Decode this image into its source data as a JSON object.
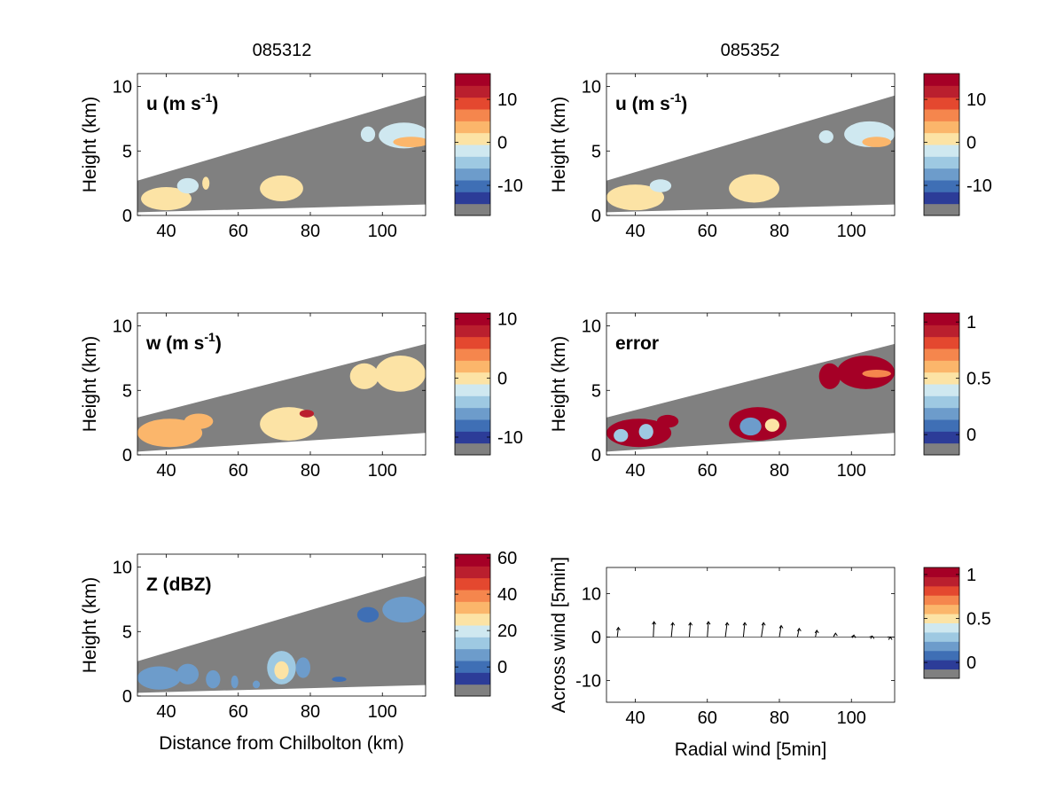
{
  "figure": {
    "column_titles": [
      "085312",
      "085352"
    ]
  },
  "colorbar": {
    "levels": [
      "#808080",
      "#2c3c98",
      "#3f6fb5",
      "#6d9ccb",
      "#9ec9e2",
      "#cfe8f0",
      "#fce3a5",
      "#fbb66b",
      "#f5864d",
      "#e4482f",
      "#ba1f2e",
      "#a50026"
    ]
  },
  "chart_data": [
    {
      "id": "u_085312",
      "type": "heatmap",
      "column": "085312",
      "panel_label": "u (m s",
      "panel_label_sup": "-1",
      "ylabel": "Height (km)",
      "xlabel": "",
      "xlim": [
        32,
        112
      ],
      "ylim": [
        0,
        11
      ],
      "xticks": [
        40,
        60,
        80,
        100
      ],
      "yticks": [
        0,
        5,
        10
      ],
      "beam": {
        "x": [
          32,
          112
        ],
        "bottom": [
          0.25,
          0.85
        ],
        "top": [
          2.7,
          9.3
        ]
      },
      "colorbar": {
        "ticks": [
          "10",
          "0",
          "-10"
        ],
        "tick_values": [
          10,
          0,
          -10
        ],
        "range": [
          -17,
          16
        ]
      },
      "features": [
        {
          "x": 40,
          "y": 1.3,
          "rx": 7,
          "ry": 0.9,
          "value": -2
        },
        {
          "x": 46,
          "y": 2.3,
          "rx": 3,
          "ry": 0.6,
          "value": -3
        },
        {
          "x": 51,
          "y": 2.5,
          "rx": 1,
          "ry": 0.5,
          "value": -2
        },
        {
          "x": 72,
          "y": 2.1,
          "rx": 6,
          "ry": 1.0,
          "value": -2
        },
        {
          "x": 96,
          "y": 6.3,
          "rx": 2,
          "ry": 0.6,
          "value": -5
        },
        {
          "x": 106,
          "y": 6.2,
          "rx": 7,
          "ry": 1.0,
          "value": -3
        },
        {
          "x": 108,
          "y": 5.7,
          "rx": 5,
          "ry": 0.4,
          "value": 2
        }
      ]
    },
    {
      "id": "u_085352",
      "type": "heatmap",
      "column": "085352",
      "panel_label": "u (m s",
      "panel_label_sup": "-1",
      "ylabel": "Height (km)",
      "xlabel": "",
      "xlim": [
        32,
        112
      ],
      "ylim": [
        0,
        11
      ],
      "xticks": [
        40,
        60,
        80,
        100
      ],
      "yticks": [
        0,
        5,
        10
      ],
      "beam": {
        "x": [
          32,
          112
        ],
        "bottom": [
          0.25,
          0.85
        ],
        "top": [
          2.7,
          9.3
        ]
      },
      "colorbar": {
        "ticks": [
          "10",
          "0",
          "-10"
        ],
        "tick_values": [
          10,
          0,
          -10
        ],
        "range": [
          -17,
          16
        ]
      },
      "features": [
        {
          "x": 40,
          "y": 1.4,
          "rx": 8,
          "ry": 1.0,
          "value": -2
        },
        {
          "x": 47,
          "y": 2.3,
          "rx": 3,
          "ry": 0.5,
          "value": -3
        },
        {
          "x": 73,
          "y": 2.1,
          "rx": 7,
          "ry": 1.1,
          "value": -2
        },
        {
          "x": 93,
          "y": 6.1,
          "rx": 2,
          "ry": 0.5,
          "value": -5
        },
        {
          "x": 105,
          "y": 6.3,
          "rx": 7,
          "ry": 1.0,
          "value": -3
        },
        {
          "x": 107,
          "y": 5.7,
          "rx": 4,
          "ry": 0.4,
          "value": 2
        }
      ]
    },
    {
      "id": "w_085312",
      "type": "heatmap",
      "column": "085312",
      "panel_label": "w (m s",
      "panel_label_sup": "-1",
      "ylabel": "Height (km)",
      "xlabel": "",
      "xlim": [
        32,
        112
      ],
      "ylim": [
        0,
        11
      ],
      "xticks": [
        40,
        60,
        80,
        100
      ],
      "yticks": [
        0,
        5,
        10
      ],
      "beam": {
        "x": [
          32,
          112
        ],
        "bottom": [
          0.25,
          1.7
        ],
        "top": [
          2.9,
          8.6
        ]
      },
      "colorbar": {
        "ticks": [
          "10",
          "0",
          "-10"
        ],
        "tick_values": [
          10,
          0,
          -10
        ],
        "range": [
          -13,
          11
        ]
      },
      "features": [
        {
          "x": 41,
          "y": 1.7,
          "rx": 9,
          "ry": 1.1,
          "value": 2
        },
        {
          "x": 49,
          "y": 2.6,
          "rx": 4,
          "ry": 0.6,
          "value": 2
        },
        {
          "x": 74,
          "y": 2.4,
          "rx": 8,
          "ry": 1.3,
          "value": 0
        },
        {
          "x": 79,
          "y": 3.2,
          "rx": 2,
          "ry": 0.3,
          "value": 8
        },
        {
          "x": 95,
          "y": 6.1,
          "rx": 4,
          "ry": 1.0,
          "value": 0
        },
        {
          "x": 105,
          "y": 6.3,
          "rx": 7,
          "ry": 1.4,
          "value": -1
        }
      ]
    },
    {
      "id": "error_085352",
      "type": "heatmap",
      "column": "085352",
      "panel_label": "error",
      "panel_label_sup": "",
      "ylabel": "Height (km)",
      "xlabel": "",
      "xlim": [
        32,
        112
      ],
      "ylim": [
        0,
        11
      ],
      "xticks": [
        40,
        60,
        80,
        100
      ],
      "yticks": [
        0,
        5,
        10
      ],
      "beam": {
        "x": [
          32,
          112
        ],
        "bottom": [
          0.25,
          1.7
        ],
        "top": [
          2.9,
          8.6
        ]
      },
      "colorbar": {
        "ticks": [
          "1",
          "0.5",
          "0"
        ],
        "tick_values": [
          1,
          0.5,
          0
        ],
        "range": [
          -0.18,
          1.08
        ]
      },
      "features": [
        {
          "x": 41,
          "y": 1.7,
          "rx": 9,
          "ry": 1.1,
          "value": 1
        },
        {
          "x": 49,
          "y": 2.6,
          "rx": 3,
          "ry": 0.5,
          "value": 1
        },
        {
          "x": 36,
          "y": 1.5,
          "rx": 2,
          "ry": 0.5,
          "value": 0.2
        },
        {
          "x": 43,
          "y": 1.8,
          "rx": 2,
          "ry": 0.6,
          "value": 0.2
        },
        {
          "x": 74,
          "y": 2.4,
          "rx": 8,
          "ry": 1.3,
          "value": 1
        },
        {
          "x": 72,
          "y": 2.2,
          "rx": 3,
          "ry": 0.7,
          "value": 0.1
        },
        {
          "x": 78,
          "y": 2.3,
          "rx": 2,
          "ry": 0.5,
          "value": 0.5
        },
        {
          "x": 94,
          "y": 6.1,
          "rx": 3,
          "ry": 1.0,
          "value": 1
        },
        {
          "x": 104,
          "y": 6.4,
          "rx": 8,
          "ry": 1.3,
          "value": 1
        },
        {
          "x": 107,
          "y": 6.3,
          "rx": 4,
          "ry": 0.3,
          "value": 0.7
        }
      ]
    },
    {
      "id": "z_085312",
      "type": "heatmap",
      "column": "085312",
      "panel_label": "Z (dBZ)",
      "panel_label_sup": "",
      "ylabel": "Height (km)",
      "xlabel": "Distance from Chilbolton (km)",
      "xlim": [
        32,
        112
      ],
      "ylim": [
        0,
        11
      ],
      "xticks": [
        40,
        60,
        80,
        100
      ],
      "yticks": [
        0,
        5,
        10
      ],
      "beam": {
        "x": [
          32,
          112
        ],
        "bottom": [
          0.25,
          0.85
        ],
        "top": [
          2.7,
          9.3
        ]
      },
      "colorbar": {
        "ticks": [
          "60",
          "40",
          "20",
          "0"
        ],
        "tick_values": [
          60,
          40,
          20,
          0
        ],
        "range": [
          -16,
          62
        ]
      },
      "features": [
        {
          "x": 38,
          "y": 1.4,
          "rx": 6,
          "ry": 0.9,
          "value": 3
        },
        {
          "x": 46,
          "y": 1.7,
          "rx": 3,
          "ry": 0.8,
          "value": 5
        },
        {
          "x": 53,
          "y": 1.3,
          "rx": 2,
          "ry": 0.7,
          "value": 3
        },
        {
          "x": 59,
          "y": 1.1,
          "rx": 1,
          "ry": 0.5,
          "value": 2
        },
        {
          "x": 65,
          "y": 0.9,
          "rx": 1,
          "ry": 0.3,
          "value": 2
        },
        {
          "x": 72,
          "y": 2.2,
          "rx": 4,
          "ry": 1.3,
          "value": 7
        },
        {
          "x": 72,
          "y": 2.0,
          "rx": 2,
          "ry": 0.7,
          "value": 20
        },
        {
          "x": 78,
          "y": 2.2,
          "rx": 2,
          "ry": 0.8,
          "value": 5
        },
        {
          "x": 96,
          "y": 6.3,
          "rx": 3,
          "ry": 0.6,
          "value": -3
        },
        {
          "x": 106,
          "y": 6.7,
          "rx": 6,
          "ry": 1.0,
          "value": 0
        },
        {
          "x": 88,
          "y": 1.3,
          "rx": 2,
          "ry": 0.2,
          "value": -3
        }
      ]
    },
    {
      "id": "wind_085352",
      "type": "scatter",
      "column": "085352",
      "panel_label": "",
      "panel_label_sup": "",
      "ylabel": "Across wind [5min]",
      "xlabel": "Radial wind [5min]",
      "xlim": [
        32,
        112
      ],
      "ylim": [
        -15,
        16
      ],
      "xticks": [
        40,
        60,
        80,
        100
      ],
      "yticks": [
        10,
        0,
        -10
      ],
      "colorbar": {
        "ticks": [
          "1",
          "0.5",
          "0"
        ],
        "tick_values": [
          1,
          0.5,
          0
        ],
        "range": [
          -0.18,
          1.08
        ]
      },
      "points": [
        {
          "x": 35,
          "u": 0.3,
          "v": 1.0
        },
        {
          "x": 45,
          "u": 0.2,
          "v": 1.6
        },
        {
          "x": 50,
          "u": 0.4,
          "v": 1.5
        },
        {
          "x": 55,
          "u": 0.3,
          "v": 1.5
        },
        {
          "x": 60,
          "u": 0.3,
          "v": 1.6
        },
        {
          "x": 65,
          "u": 0.5,
          "v": 1.5
        },
        {
          "x": 70,
          "u": 0.4,
          "v": 1.5
        },
        {
          "x": 75,
          "u": 0.6,
          "v": 1.5
        },
        {
          "x": 80,
          "u": 0.5,
          "v": 1.2
        },
        {
          "x": 85,
          "u": 0.5,
          "v": 0.9
        },
        {
          "x": 90,
          "u": 0.4,
          "v": 0.7
        },
        {
          "x": 95,
          "u": 0.6,
          "v": 0.4
        },
        {
          "x": 100,
          "u": 0.7,
          "v": 0.2
        },
        {
          "x": 105,
          "u": 0.8,
          "v": 0.1
        },
        {
          "x": 110,
          "u": 0.8,
          "v": 0.0
        }
      ]
    }
  ]
}
